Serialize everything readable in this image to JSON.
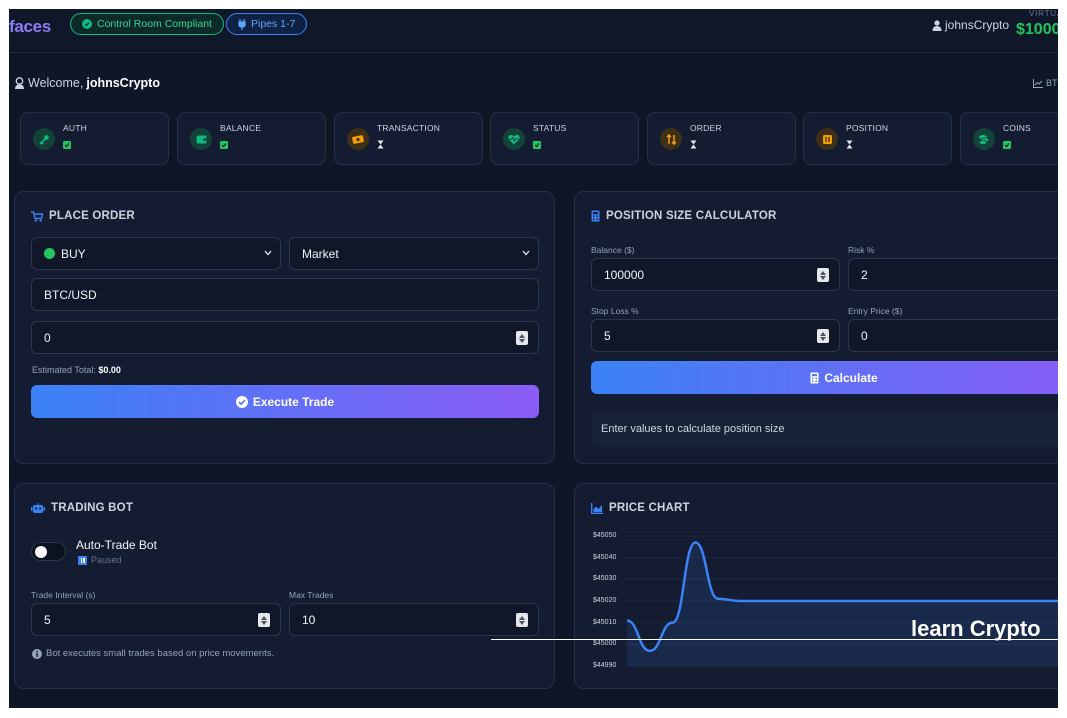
{
  "header": {
    "brand": "faces",
    "badges": [
      {
        "label": "Control Room Compliant",
        "color": "#10b981"
      },
      {
        "label": "Pipes 1-7",
        "color": "#3b82f6"
      }
    ],
    "username": "johnsCrypto",
    "virtual_label": "VIRTUA",
    "virtual_balance": "$1000"
  },
  "welcome": {
    "prefix": "Welcome,",
    "username": "johnsCrypto",
    "right_link": "BT"
  },
  "status_cards": [
    {
      "label": "AUTH",
      "icon": "key-icon",
      "state": "check"
    },
    {
      "label": "BALANCE",
      "icon": "wallet-icon",
      "state": "check"
    },
    {
      "label": "TRANSACTION",
      "icon": "money-bill-icon",
      "state": "pending"
    },
    {
      "label": "STATUS",
      "icon": "heartbeat-icon",
      "state": "check"
    },
    {
      "label": "ORDER",
      "icon": "exchange-icon",
      "state": "pending"
    },
    {
      "label": "POSITION",
      "icon": "position-icon",
      "state": "pending"
    },
    {
      "label": "COINS",
      "icon": "coins-icon",
      "state": "check"
    }
  ],
  "place_order": {
    "title": "PLACE ORDER",
    "side": "BUY",
    "order_type": "Market",
    "pair": "BTC/USD",
    "amount": "0",
    "estimated_label": "Estimated Total:",
    "estimated_value": "$0.00",
    "execute_label": "Execute Trade"
  },
  "calculator": {
    "title": "POSITION SIZE CALCULATOR",
    "balance_label": "Balance ($)",
    "balance_value": "100000",
    "risk_label": "Risk %",
    "risk_value": "2",
    "stop_label": "Stop Loss %",
    "stop_value": "5",
    "entry_label": "Entry Price ($)",
    "entry_value": "0",
    "calculate_label": "Calculate",
    "result_text": "Enter values to calculate position size"
  },
  "bot": {
    "title": "TRADING BOT",
    "name": "Auto-Trade Bot",
    "status": "Paused",
    "interval_label": "Trade Interval (s)",
    "interval_value": "5",
    "max_label": "Max Trades",
    "max_value": "10",
    "note": "Bot executes small trades based on price movements."
  },
  "price_chart": {
    "title": "PRICE CHART"
  },
  "chart_data": {
    "type": "area",
    "title": "",
    "xlabel": "",
    "ylabel": "",
    "ylim": [
      44990,
      45050
    ],
    "yticks": [
      "$45050",
      "$45040",
      "$45030",
      "$45020",
      "$45010",
      "$45000",
      "$44990"
    ],
    "series": [
      {
        "x": [
          0,
          1,
          2,
          3,
          4,
          5,
          6,
          7,
          8,
          9,
          10,
          11,
          12,
          13,
          14,
          15,
          16,
          17,
          18,
          19,
          20
        ],
        "values": [
          45011,
          44997,
          45010,
          45047,
          45021,
          45020,
          45020,
          45020,
          45020,
          45020,
          45020,
          45020,
          45020,
          45020,
          45020,
          45020,
          45020,
          45020,
          45020,
          45020,
          45020
        ]
      }
    ],
    "line_color": "#3b82f6",
    "grid": true
  },
  "overlay": {
    "text": "learn Crypto"
  }
}
